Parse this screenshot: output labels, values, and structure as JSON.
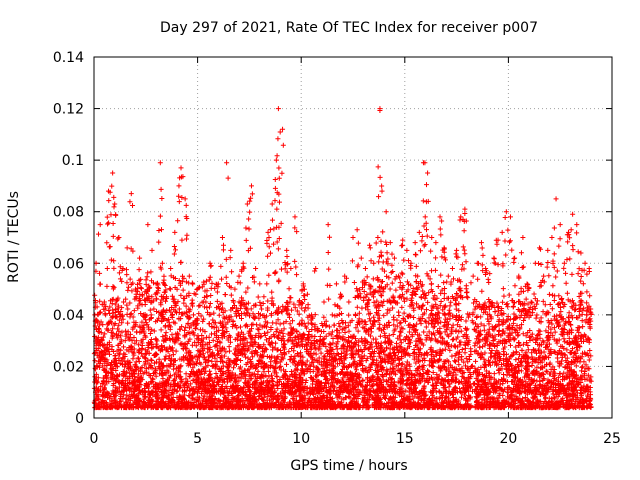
{
  "chart_data": {
    "type": "scatter",
    "title": "Day 297 of 2021, Rate Of TEC Index for receiver p007",
    "xlabel": "GPS time / hours",
    "ylabel": "ROTI / TECUs",
    "xlim": [
      0,
      25
    ],
    "ylim": [
      0,
      0.14
    ],
    "xticks": [
      0,
      5,
      10,
      15,
      20,
      25
    ],
    "yticks": [
      0,
      0.02,
      0.04,
      0.06,
      0.08,
      0.1,
      0.12,
      0.14
    ],
    "xtick_labels": [
      "0",
      "5",
      "10",
      "15",
      "20",
      "25"
    ],
    "ytick_labels": [
      "0",
      "0.02",
      "0.04",
      "0.06",
      "0.08",
      "0.1",
      "0.12",
      "0.14"
    ],
    "grid": true,
    "marker": "+",
    "color": "#ff0000",
    "series": [
      {
        "x": [
          0.1,
          0.3,
          0.5,
          0.7,
          0.9,
          1.0,
          1.2,
          1.4,
          1.6,
          1.8,
          2.0,
          2.2,
          2.4,
          2.6,
          2.8,
          3.0,
          3.2,
          3.3,
          3.5,
          3.7,
          3.9,
          4.1,
          4.2,
          4.4,
          4.6,
          4.8,
          5.0,
          5.2,
          5.4,
          5.6,
          5.8,
          6.0,
          6.2,
          6.4,
          6.6,
          6.8,
          7.0,
          7.2,
          7.4,
          7.6,
          7.8,
          8.0,
          8.2,
          8.4,
          8.6,
          8.8,
          8.9,
          9.1,
          9.3,
          9.5,
          9.7,
          9.9,
          10.1,
          10.3,
          10.5,
          10.7,
          10.9,
          11.1,
          11.3,
          11.5,
          11.7,
          11.9,
          12.1,
          12.3,
          12.5,
          12.7,
          12.9,
          13.1,
          13.3,
          13.5,
          13.7,
          13.8,
          13.9,
          14.1,
          14.3,
          14.5,
          14.7,
          14.9,
          15.1,
          15.3,
          15.5,
          15.7,
          15.9,
          16.1,
          16.3,
          16.5,
          16.7,
          16.9,
          17.1,
          17.3,
          17.5,
          17.7,
          17.9,
          18.1,
          18.3,
          18.5,
          18.7,
          18.9,
          19.1,
          19.3,
          19.5,
          19.7,
          19.9,
          20.1,
          20.3,
          20.5,
          20.7,
          20.9,
          21.1,
          21.3,
          21.5,
          21.7,
          21.9,
          22.1,
          22.3,
          22.5,
          22.7,
          22.9,
          23.1,
          23.3,
          23.5,
          23.7,
          23.9
        ],
        "y": [
          0.06,
          0.075,
          0.045,
          0.088,
          0.095,
          0.083,
          0.07,
          0.058,
          0.066,
          0.087,
          0.05,
          0.062,
          0.04,
          0.075,
          0.065,
          0.052,
          0.099,
          0.06,
          0.047,
          0.058,
          0.072,
          0.09,
          0.097,
          0.085,
          0.055,
          0.04,
          0.038,
          0.032,
          0.045,
          0.06,
          0.035,
          0.052,
          0.07,
          0.099,
          0.065,
          0.05,
          0.055,
          0.06,
          0.083,
          0.09,
          0.058,
          0.052,
          0.047,
          0.072,
          0.083,
          0.1,
          0.12,
          0.112,
          0.065,
          0.058,
          0.078,
          0.045,
          0.052,
          0.048,
          0.04,
          0.058,
          0.03,
          0.045,
          0.075,
          0.04,
          0.052,
          0.048,
          0.055,
          0.045,
          0.07,
          0.073,
          0.062,
          0.058,
          0.067,
          0.06,
          0.07,
          0.12,
          0.088,
          0.08,
          0.068,
          0.062,
          0.055,
          0.069,
          0.065,
          0.06,
          0.068,
          0.072,
          0.099,
          0.095,
          0.07,
          0.068,
          0.078,
          0.066,
          0.055,
          0.058,
          0.065,
          0.078,
          0.081,
          0.03,
          0.055,
          0.06,
          0.068,
          0.058,
          0.056,
          0.062,
          0.069,
          0.072,
          0.08,
          0.078,
          0.062,
          0.055,
          0.07,
          0.052,
          0.045,
          0.06,
          0.066,
          0.055,
          0.065,
          0.07,
          0.085,
          0.075,
          0.06,
          0.072,
          0.079,
          0.075,
          0.064,
          0.06,
          0.058
        ]
      }
    ],
    "band": {
      "segments": [
        {
          "x_range": [
            0.0,
            2.0
          ],
          "base": 0.004,
          "top": 0.03
        },
        {
          "x_range": [
            2.0,
            6.0
          ],
          "base": 0.004,
          "top": 0.035
        },
        {
          "x_range": [
            6.0,
            10.0
          ],
          "base": 0.004,
          "top": 0.03
        },
        {
          "x_range": [
            10.0,
            12.5
          ],
          "base": 0.004,
          "top": 0.025
        },
        {
          "x_range": [
            12.5,
            18.2
          ],
          "base": 0.004,
          "top": 0.035
        },
        {
          "x_range": [
            18.4,
            24.0
          ],
          "base": 0.004,
          "top": 0.03
        }
      ]
    }
  }
}
